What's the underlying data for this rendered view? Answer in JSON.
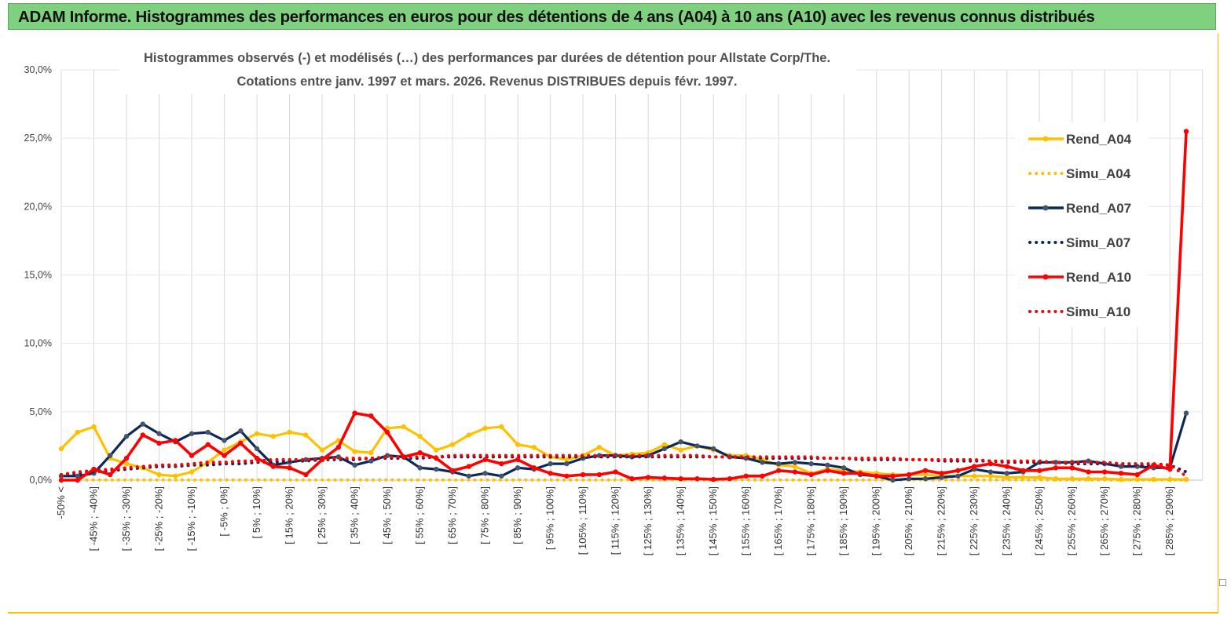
{
  "header": {
    "title": "ADAM Informe. Histogrammes des performances en euros pour des détentions de 4 ans (A04) à 10 ans (A10) avec les revenus connus distribués"
  },
  "chart_data": {
    "type": "line",
    "title_line1": "Histogrammes observés (-) et modélisés (…)  des performances par durées de détention pour Allstate Corp/The.",
    "title_line2": "Cotations entre janv. 1997 et mars. 2026. Revenus DISTRIBUES depuis févr. 1997.",
    "ylim": [
      0,
      30
    ],
    "y_ticks": [
      "0,0%",
      "5,0%",
      "10,0%",
      "15,0%",
      "20,0%",
      "25,0%",
      "30,0%"
    ],
    "y_tick_values": [
      0,
      5,
      10,
      15,
      20,
      25,
      30
    ],
    "x_labels_shown": [
      "-50% <",
      "[ -45% ; -40%]",
      "[ -35% ; -30%]",
      "[ -25% ; -20%]",
      "[ -15% ; -10%]",
      "[ -5% ; 0%]",
      "[ 5% ; 10%]",
      "[ 15% ; 20%]",
      "[ 25% ; 30%]",
      "[ 35% ; 40%]",
      "[ 45% ; 50%]",
      "[ 55% ; 60%]",
      "[ 65% ; 70%]",
      "[ 75% ; 80%]",
      "[ 85% ; 90%]",
      "[ 95% ; 100%]",
      "[ 105% ; 110%]",
      "[ 115% ; 120%]",
      "[ 125% ; 130%]",
      "[ 135% ; 140%]",
      "[ 145% ; 150%]",
      "[ 155% ; 160%]",
      "[ 165% ; 170%]",
      "[ 175% ; 180%]",
      "[ 185% ; 190%]",
      "[ 195% ; 200%]",
      "[ 205% ; 210%]",
      "[ 215% ; 220%]",
      "[ 225% ; 230%]",
      "[ 235% ; 240%]",
      "[ 245% ; 250%]",
      "[ 255% ; 260%]",
      "[ 265% ; 270%]",
      "[ 275% ; 280%]",
      "[ 285% ; 290%]"
    ],
    "n_points": 70,
    "legend_position": "right",
    "series": [
      {
        "name": "Rend_A04",
        "style": "solid",
        "color": "#ffc000",
        "values": [
          2.3,
          3.5,
          3.9,
          1.6,
          1.2,
          0.9,
          0.4,
          0.3,
          0.6,
          1.3,
          2.2,
          2.8,
          3.4,
          3.2,
          3.5,
          3.3,
          2.2,
          2.9,
          2.1,
          2.0,
          3.8,
          3.9,
          3.2,
          2.2,
          2.6,
          3.3,
          3.8,
          3.9,
          2.6,
          2.4,
          1.7,
          1.5,
          1.8,
          2.4,
          1.8,
          1.9,
          2.0,
          2.6,
          2.2,
          2.5,
          2.2,
          1.8,
          1.8,
          1.5,
          1.1,
          1.0,
          0.5,
          0.8,
          0.7,
          0.6,
          0.5,
          0.4,
          0.4,
          0.4,
          0.3,
          0.3,
          0.3,
          0.3,
          0.2,
          0.2,
          0.2,
          0.1,
          0.1,
          0.1,
          0.1,
          0.05,
          0.05,
          0.05,
          0.05,
          0.05
        ]
      },
      {
        "name": "Simu_A04",
        "style": "dotted",
        "color": "#ffc000",
        "values": [
          0.02,
          0.02,
          0.02,
          0.02,
          0.02,
          0.02,
          0.02,
          0.02,
          0.02,
          0.02,
          0.02,
          0.02,
          0.02,
          0.02,
          0.02,
          0.02,
          0.02,
          0.02,
          0.02,
          0.02,
          0.02,
          0.02,
          0.02,
          0.02,
          0.02,
          0.02,
          0.02,
          0.02,
          0.02,
          0.02,
          0.02,
          0.02,
          0.02,
          0.02,
          0.02,
          0.02,
          0.02,
          0.02,
          0.02,
          0.02,
          0.02,
          0.02,
          0.02,
          0.02,
          0.02,
          0.02,
          0.02,
          0.02,
          0.02,
          0.02,
          0.02,
          0.02,
          0.02,
          0.02,
          0.02,
          0.02,
          0.02,
          0.02,
          0.02,
          0.02,
          0.02,
          0.02,
          0.02,
          0.02,
          0.02,
          0.02,
          0.02,
          0.02,
          0.02,
          0.02
        ]
      },
      {
        "name": "Rend_A07",
        "style": "solid",
        "color": "#0d2758",
        "values": [
          0.3,
          0.3,
          0.5,
          1.8,
          3.2,
          4.1,
          3.4,
          2.8,
          3.4,
          3.5,
          2.9,
          3.6,
          2.3,
          1.1,
          1.3,
          1.5,
          1.6,
          1.7,
          1.1,
          1.4,
          1.8,
          1.7,
          0.9,
          0.8,
          0.6,
          0.3,
          0.5,
          0.3,
          0.9,
          0.8,
          1.2,
          1.2,
          1.6,
          1.8,
          1.8,
          1.7,
          1.8,
          2.3,
          2.8,
          2.5,
          2.3,
          1.7,
          1.6,
          1.3,
          1.2,
          1.3,
          1.2,
          1.1,
          0.9,
          0.4,
          0.3,
          0.0,
          0.1,
          0.1,
          0.2,
          0.3,
          0.8,
          0.6,
          0.5,
          0.6,
          1.3,
          1.3,
          1.3,
          1.4,
          1.2,
          1.0,
          1.0,
          0.9,
          0.9,
          4.9
        ]
      },
      {
        "name": "Simu_A07",
        "style": "dotted",
        "color": "#0d2758",
        "values": [
          0.4,
          0.5,
          0.6,
          0.7,
          0.8,
          0.9,
          1.0,
          1.0,
          1.1,
          1.1,
          1.2,
          1.2,
          1.3,
          1.3,
          1.4,
          1.4,
          1.5,
          1.5,
          1.5,
          1.6,
          1.6,
          1.6,
          1.6,
          1.7,
          1.7,
          1.7,
          1.7,
          1.7,
          1.7,
          1.7,
          1.7,
          1.7,
          1.7,
          1.7,
          1.7,
          1.7,
          1.7,
          1.7,
          1.7,
          1.7,
          1.7,
          1.7,
          1.7,
          1.6,
          1.6,
          1.6,
          1.6,
          1.6,
          1.6,
          1.5,
          1.5,
          1.5,
          1.5,
          1.5,
          1.4,
          1.4,
          1.4,
          1.4,
          1.3,
          1.3,
          1.3,
          1.3,
          1.2,
          1.2,
          1.2,
          1.2,
          1.1,
          1.1,
          1.1,
          0.6
        ]
      },
      {
        "name": "Rend_A10",
        "style": "solid",
        "color": "#ff0000",
        "values": [
          0.0,
          0.0,
          0.8,
          0.4,
          1.6,
          3.3,
          2.7,
          2.9,
          1.8,
          2.6,
          1.8,
          2.7,
          1.6,
          1.0,
          0.9,
          0.4,
          1.5,
          2.4,
          4.9,
          4.7,
          3.5,
          1.7,
          2.0,
          1.6,
          0.7,
          1.0,
          1.5,
          1.2,
          1.5,
          0.9,
          0.5,
          0.3,
          0.4,
          0.4,
          0.6,
          0.1,
          0.2,
          0.15,
          0.1,
          0.1,
          0.05,
          0.1,
          0.3,
          0.3,
          0.7,
          0.6,
          0.4,
          0.7,
          0.5,
          0.5,
          0.3,
          0.3,
          0.4,
          0.7,
          0.5,
          0.7,
          1.0,
          1.2,
          1.0,
          0.7,
          0.7,
          0.9,
          0.9,
          0.6,
          0.6,
          0.5,
          0.4,
          1.1,
          0.8,
          25.5
        ]
      },
      {
        "name": "Simu_A10",
        "style": "dotted",
        "color": "#ff0000",
        "values": [
          0.4,
          0.6,
          0.7,
          0.8,
          0.9,
          1.0,
          1.1,
          1.1,
          1.2,
          1.3,
          1.3,
          1.4,
          1.4,
          1.5,
          1.5,
          1.5,
          1.6,
          1.6,
          1.6,
          1.6,
          1.7,
          1.7,
          1.7,
          1.7,
          1.8,
          1.8,
          1.8,
          1.8,
          1.8,
          1.8,
          1.8,
          1.8,
          1.8,
          1.8,
          1.8,
          1.8,
          1.8,
          1.8,
          1.8,
          1.8,
          1.7,
          1.7,
          1.7,
          1.7,
          1.7,
          1.7,
          1.7,
          1.6,
          1.6,
          1.6,
          1.6,
          1.6,
          1.5,
          1.5,
          1.5,
          1.5,
          1.5,
          1.4,
          1.4,
          1.4,
          1.4,
          1.3,
          1.3,
          1.3,
          1.3,
          1.2,
          1.2,
          1.2,
          1.1,
          0.3
        ]
      }
    ]
  }
}
